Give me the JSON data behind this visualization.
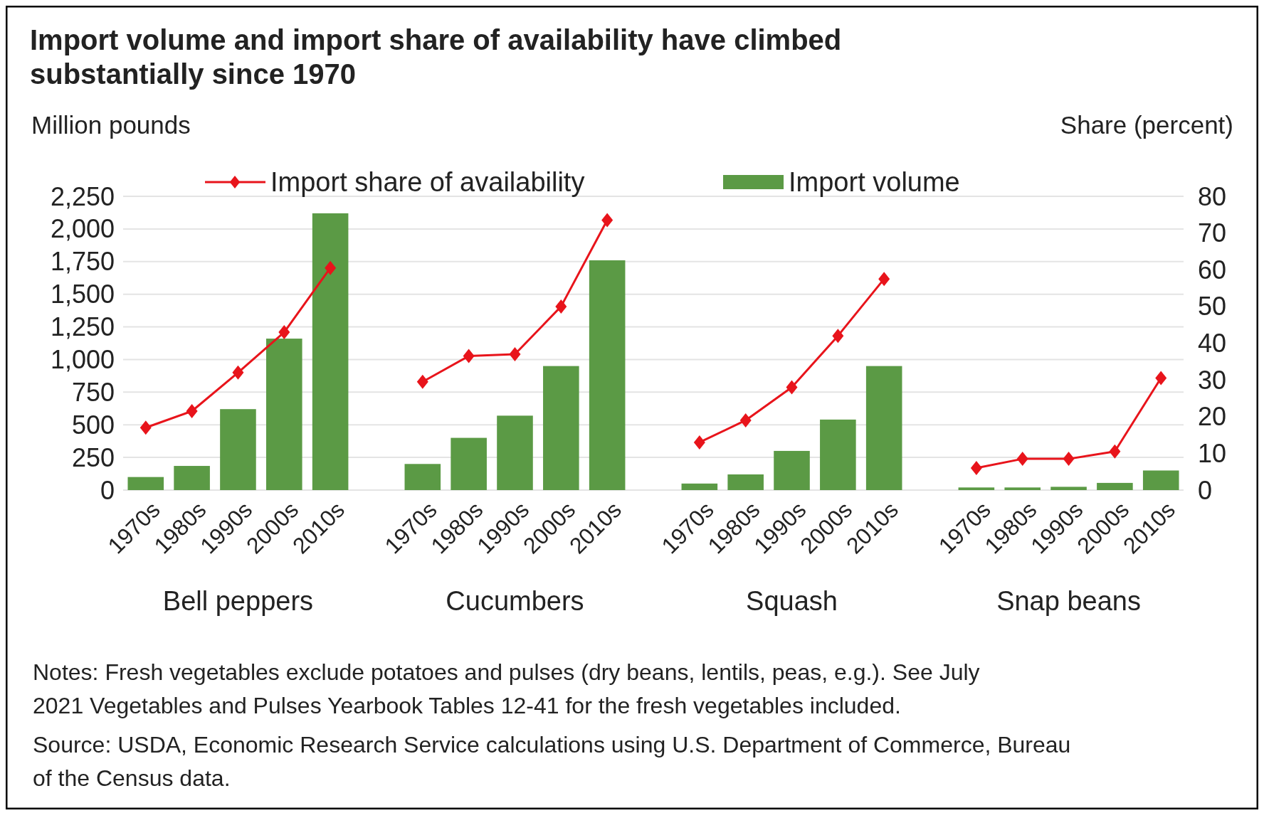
{
  "chart_data": {
    "type": "bar",
    "title": "Import volume and import share of availability have climbed substantially since 1970",
    "ylabel": "Million pounds",
    "y2label": "Share (percent)",
    "categories": [
      "1970s",
      "1980s",
      "1990s",
      "2000s",
      "2010s",
      null,
      "1970s",
      "1980s",
      "1990s",
      "2000s",
      "2010s",
      null,
      "1970s",
      "1980s",
      "1990s",
      "2000s",
      "2010s",
      null,
      "1970s",
      "1980s",
      "1990s",
      "2000s",
      "2010s"
    ],
    "series": [
      {
        "name": "Import share of availability",
        "type": "line",
        "axis": "y2",
        "color": "#e8141b",
        "values": [
          17,
          21.5,
          32,
          43,
          60.5,
          null,
          29.5,
          36.5,
          37,
          50,
          73.5,
          null,
          13,
          19,
          28,
          42,
          57.5,
          null,
          6,
          8.5,
          8.5,
          10.5,
          30.5
        ]
      },
      {
        "name": "Import volume",
        "color": "#5b9a45",
        "values": [
          100,
          185,
          620,
          1160,
          2120,
          null,
          200,
          400,
          570,
          950,
          1760,
          null,
          50,
          120,
          300,
          540,
          950,
          null,
          20,
          20,
          25,
          55,
          150
        ]
      }
    ],
    "ylim": [
      0,
      2250
    ],
    "yticks": [
      0,
      250,
      500,
      750,
      {
        "value": 1000,
        "label": "1,000"
      },
      {
        "value": 1250,
        "label": "1,250"
      },
      {
        "value": 1500,
        "label": "1,500"
      },
      {
        "value": 1750,
        "label": "1,750"
      },
      {
        "value": 2000,
        "label": "2,000"
      },
      {
        "value": 2250,
        "label": "2,250"
      }
    ],
    "y2lim": [
      0,
      80
    ],
    "y2ticks": [
      0,
      10,
      20,
      30,
      40,
      50,
      60,
      70,
      80
    ],
    "grid": "y",
    "legend": "top",
    "marker": "diamond",
    "annotations": [
      "Bell peppers",
      "Cucumbers",
      "Squash",
      "Snap beans",
      "Notes: Fresh vegetables exclude potatoes and pulses (dry beans, lentils, peas, e.g.). See July 2021 Vegetables and Pulses Yearbook Tables 12-41 for the fresh vegetables included.",
      "Source: USDA, Economic Research Service calculations using U.S. Department of Commerce, Bureau of the Census data."
    ]
  }
}
